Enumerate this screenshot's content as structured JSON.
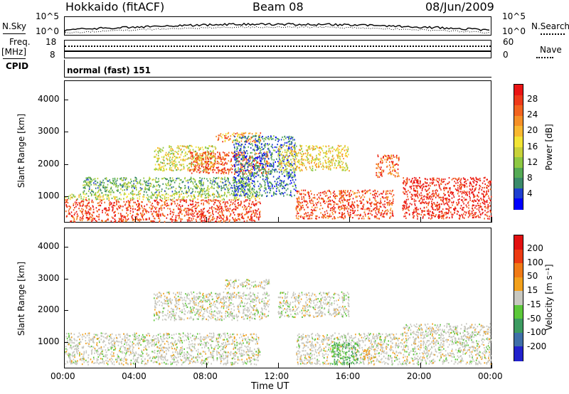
{
  "header": {
    "station": "Hokkaido (fitACF)",
    "beam": "Beam 08",
    "date": "08/Jun/2009"
  },
  "summary": {
    "nsky_label": "N.Sky",
    "nsearch_label": "N.Search",
    "noise_ticks_left": [
      "10^5",
      "10^0"
    ],
    "noise_ticks_right": [
      "10^5",
      "10^0"
    ],
    "freq_label": "Freq.",
    "freq_unit": "[MHz]",
    "freq_ticks": [
      "18",
      "8"
    ],
    "nave_label": "Nave",
    "nave_ticks": [
      "60",
      "0"
    ],
    "cpid_label": "CPID",
    "cpid_value": "normal (fast) 151"
  },
  "axes": {
    "xlabel": "Time UT",
    "x_ticks": [
      "00:00",
      "04:00",
      "08:00",
      "12:00",
      "16:00",
      "20:00",
      "00:00"
    ],
    "ylabel": "Slant Range [km]",
    "y_ticks": [
      "4000",
      "3000",
      "2000",
      "1000"
    ]
  },
  "colorbars": {
    "power": {
      "label": "Power [dB]",
      "ticks": [
        "28",
        "24",
        "20",
        "16",
        "12",
        "8",
        "4"
      ],
      "colors": [
        "#0000ff",
        "#1f3fd0",
        "#3a8a6a",
        "#55aa55",
        "#8ec843",
        "#c8d23a",
        "#f2e436",
        "#f8b830",
        "#f59027",
        "#f2641f",
        "#ee3a1a",
        "#ea1414"
      ]
    },
    "velocity": {
      "label": "Velocity [m s⁻¹]",
      "ticks": [
        "200",
        "100",
        "50",
        "15",
        "-15",
        "-50",
        "-100",
        "-200"
      ],
      "colors": [
        "#2222cc",
        "#3f6fa8",
        "#3d9b61",
        "#5cc83a",
        "#c8c8c0",
        "#f2a01c",
        "#f07a16",
        "#ec3a12",
        "#e21010"
      ]
    }
  },
  "chart_data": [
    {
      "type": "heatmap",
      "title": "Power",
      "xlabel": "Time UT",
      "ylabel": "Slant Range [km]",
      "xlim": [
        "00:00",
        "24:00"
      ],
      "ylim": [
        180,
        4600
      ],
      "colorbar": {
        "label": "Power [dB]",
        "range": [
          0,
          32
        ]
      },
      "regions": [
        {
          "time": [
            0.0,
            11.0
          ],
          "range": [
            200,
            900
          ],
          "value": 28
        },
        {
          "time": [
            0.0,
            11.0
          ],
          "range": [
            900,
            1100
          ],
          "value": 14
        },
        {
          "time": [
            1.0,
            10.5
          ],
          "range": [
            1100,
            1600
          ],
          "value": 10
        },
        {
          "time": [
            5.0,
            8.5
          ],
          "range": [
            1800,
            2600
          ],
          "value": 16
        },
        {
          "time": [
            7.0,
            11.5
          ],
          "range": [
            1700,
            2400
          ],
          "value": 26
        },
        {
          "time": [
            8.5,
            11.0
          ],
          "range": [
            2700,
            3000
          ],
          "value": 22
        },
        {
          "time": [
            9.5,
            13.0
          ],
          "range": [
            1000,
            2900
          ],
          "value": 6
        },
        {
          "time": [
            12.0,
            16.0
          ],
          "range": [
            1800,
            2600
          ],
          "value": 18
        },
        {
          "time": [
            13.0,
            18.5
          ],
          "range": [
            300,
            1200
          ],
          "value": 27
        },
        {
          "time": [
            17.5,
            18.8
          ],
          "range": [
            1600,
            2300
          ],
          "value": 26
        },
        {
          "time": [
            19.0,
            24.0
          ],
          "range": [
            300,
            1600
          ],
          "value": 30
        }
      ]
    },
    {
      "type": "heatmap",
      "title": "Velocity",
      "xlabel": "Time UT",
      "ylabel": "Slant Range [km]",
      "xlim": [
        "00:00",
        "24:00"
      ],
      "ylim": [
        180,
        4600
      ],
      "colorbar": {
        "label": "Velocity [m s⁻¹]",
        "range": [
          -200,
          200
        ]
      },
      "regions": [
        {
          "time": [
            0.0,
            11.0
          ],
          "range": [
            300,
            1300
          ],
          "value": 0
        },
        {
          "time": [
            5.0,
            11.5
          ],
          "range": [
            1700,
            2600
          ],
          "value": 0
        },
        {
          "time": [
            9.0,
            11.5
          ],
          "range": [
            2700,
            3000
          ],
          "value": 0
        },
        {
          "time": [
            12.0,
            16.0
          ],
          "range": [
            1800,
            2600
          ],
          "value": 0
        },
        {
          "time": [
            13.0,
            19.0
          ],
          "range": [
            300,
            1300
          ],
          "value": 0
        },
        {
          "time": [
            15.0,
            16.5
          ],
          "range": [
            300,
            1000
          ],
          "value": -60
        },
        {
          "time": [
            16.8,
            17.5
          ],
          "range": [
            450,
            800
          ],
          "value": 40
        },
        {
          "time": [
            19.0,
            24.0
          ],
          "range": [
            300,
            1600
          ],
          "value": 0
        }
      ]
    }
  ]
}
